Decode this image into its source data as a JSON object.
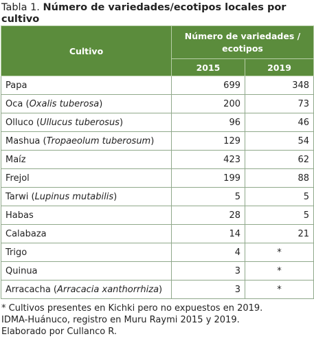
{
  "title": {
    "prefix": "Tabla 1.",
    "text": "Número de variedades/ecotipos locales por cultivo"
  },
  "table": {
    "header": {
      "crop": "Cultivo",
      "group": "Número de variedades / ecotipos",
      "years": [
        "2015",
        "2019"
      ]
    },
    "rows": [
      {
        "crop": [
          "Papa"
        ],
        "values": [
          699,
          348
        ]
      },
      {
        "crop": [
          "Oca (",
          "Oxalis tuberosa",
          ")"
        ],
        "values": [
          200,
          73
        ]
      },
      {
        "crop": [
          "Olluco (",
          "Ullucus tuberosus",
          ")"
        ],
        "values": [
          96,
          46
        ]
      },
      {
        "crop": [
          "Mashua (",
          "Tropaeolum tuberosum",
          ")"
        ],
        "values": [
          129,
          54
        ]
      },
      {
        "crop": [
          "Maíz"
        ],
        "values": [
          423,
          62
        ]
      },
      {
        "crop": [
          "Frejol"
        ],
        "values": [
          199,
          88
        ]
      },
      {
        "crop": [
          "Tarwi (",
          "Lupinus mutabilis",
          ")"
        ],
        "values": [
          5,
          5
        ]
      },
      {
        "crop": [
          "Habas"
        ],
        "values": [
          28,
          5
        ]
      },
      {
        "crop": [
          "Calabaza"
        ],
        "values": [
          14,
          21
        ]
      },
      {
        "crop": [
          "Trigo"
        ],
        "values": [
          4,
          "*"
        ]
      },
      {
        "crop": [
          "Quinua"
        ],
        "values": [
          3,
          "*"
        ]
      },
      {
        "crop": [
          "Arracacha (",
          "Arracacia xanthorrhiza",
          ")"
        ],
        "values": [
          3,
          "*"
        ]
      }
    ]
  },
  "footnotes": [
    "* Cultivos presentes en Kichki pero no expuestos en 2019.",
    "IDMA-Huánuco, registro en Muru Raymi 2015 y 2019.",
    "Elaborado por Cullanco R."
  ]
}
